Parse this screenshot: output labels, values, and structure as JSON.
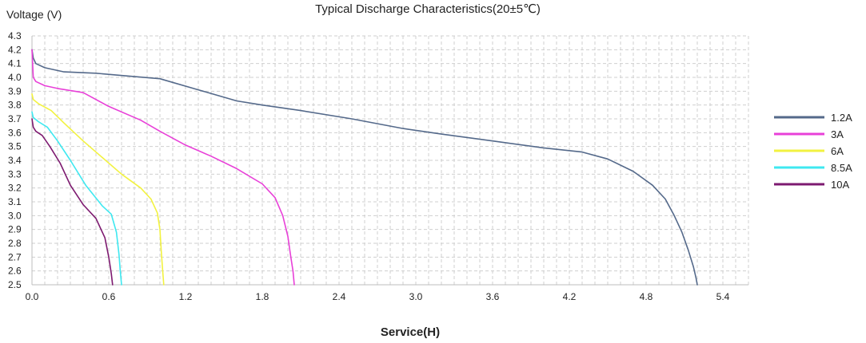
{
  "chart_data": {
    "type": "line",
    "title": "Typical Discharge Characteristics(20±5℃)",
    "ylabel": "Voltage (V)",
    "xlabel": "Service(H)",
    "xlim": [
      0,
      5.6
    ],
    "ylim": [
      2.5,
      4.3
    ],
    "xticks": [
      "0.0",
      "0.6",
      "1.2",
      "1.8",
      "2.4",
      "3.0",
      "3.6",
      "4.2",
      "4.8",
      "5.4"
    ],
    "xtick_values": [
      0,
      0.6,
      1.2,
      1.8,
      2.4,
      3.0,
      3.6,
      4.2,
      4.8,
      5.4
    ],
    "yticks": [
      "2.5",
      "2.6",
      "2.7",
      "2.8",
      "2.9",
      "3.0",
      "3.1",
      "3.2",
      "3.3",
      "3.4",
      "3.5",
      "3.6",
      "3.7",
      "3.8",
      "3.9",
      "4.0",
      "4.1",
      "4.2",
      "4.3"
    ],
    "ytick_values": [
      2.5,
      2.6,
      2.7,
      2.8,
      2.9,
      3.0,
      3.1,
      3.2,
      3.3,
      3.4,
      3.5,
      3.6,
      3.7,
      3.8,
      3.9,
      4.0,
      4.1,
      4.2,
      4.3
    ],
    "grid": true,
    "legend_position": "right",
    "series": [
      {
        "name": "1.2A",
        "color": "#54698a",
        "x": [
          0,
          0.01,
          0.03,
          0.1,
          0.25,
          0.5,
          0.75,
          1.0,
          1.3,
          1.6,
          1.8,
          2.1,
          2.5,
          2.9,
          3.2,
          3.6,
          4.0,
          4.3,
          4.5,
          4.7,
          4.85,
          4.95,
          5.02,
          5.08,
          5.13,
          5.17,
          5.19,
          5.2
        ],
        "y": [
          4.2,
          4.14,
          4.1,
          4.07,
          4.04,
          4.03,
          4.01,
          3.99,
          3.91,
          3.83,
          3.8,
          3.76,
          3.7,
          3.63,
          3.59,
          3.54,
          3.49,
          3.46,
          3.41,
          3.32,
          3.22,
          3.12,
          3.0,
          2.88,
          2.75,
          2.63,
          2.55,
          2.5
        ]
      },
      {
        "name": "3A",
        "color": "#e840d8",
        "x": [
          0,
          0.01,
          0.03,
          0.1,
          0.2,
          0.4,
          0.6,
          0.85,
          1.0,
          1.2,
          1.4,
          1.6,
          1.8,
          1.9,
          1.96,
          2.0,
          2.02,
          2.04,
          2.05
        ],
        "y": [
          4.2,
          4.0,
          3.97,
          3.94,
          3.92,
          3.89,
          3.79,
          3.69,
          3.61,
          3.51,
          3.43,
          3.34,
          3.23,
          3.13,
          3.0,
          2.85,
          2.72,
          2.6,
          2.5
        ]
      },
      {
        "name": "6A",
        "color": "#f2f240",
        "x": [
          0,
          0.01,
          0.05,
          0.15,
          0.25,
          0.4,
          0.55,
          0.7,
          0.85,
          0.93,
          0.98,
          1.0,
          1.01,
          1.02,
          1.03
        ],
        "y": [
          3.88,
          3.84,
          3.81,
          3.76,
          3.67,
          3.54,
          3.42,
          3.3,
          3.2,
          3.12,
          3.02,
          2.9,
          2.75,
          2.62,
          2.5
        ]
      },
      {
        "name": "8.5A",
        "color": "#3fe8f0",
        "x": [
          0,
          0.01,
          0.05,
          0.12,
          0.2,
          0.3,
          0.42,
          0.55,
          0.62,
          0.66,
          0.68,
          0.69,
          0.7
        ],
        "y": [
          3.75,
          3.71,
          3.68,
          3.64,
          3.54,
          3.4,
          3.22,
          3.07,
          3.01,
          2.88,
          2.72,
          2.6,
          2.5
        ]
      },
      {
        "name": "10A",
        "color": "#7d1a70",
        "x": [
          0,
          0.01,
          0.03,
          0.08,
          0.14,
          0.22,
          0.3,
          0.4,
          0.5,
          0.57,
          0.6,
          0.62,
          0.63
        ],
        "y": [
          3.7,
          3.64,
          3.61,
          3.58,
          3.5,
          3.38,
          3.22,
          3.08,
          2.98,
          2.84,
          2.7,
          2.58,
          2.5
        ]
      }
    ]
  }
}
